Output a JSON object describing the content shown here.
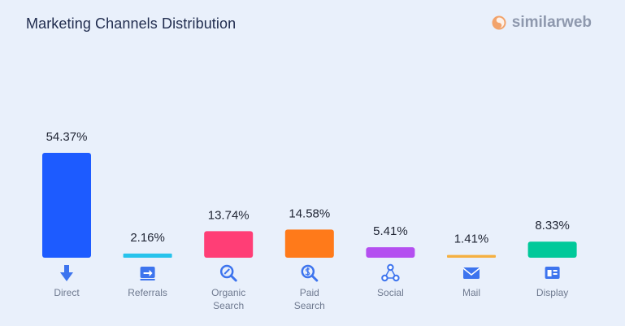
{
  "header": {
    "title": "Marketing Channels Distribution",
    "logo_text": "similarweb"
  },
  "chart_data": {
    "type": "bar",
    "title": "Marketing Channels Distribution",
    "categories": [
      [
        "Direct"
      ],
      [
        "Referrals"
      ],
      [
        "Organic",
        "Search"
      ],
      [
        "Paid",
        "Search"
      ],
      [
        "Social"
      ],
      [
        "Mail"
      ],
      [
        "Display"
      ]
    ],
    "values": [
      54.37,
      2.16,
      13.74,
      14.58,
      5.41,
      1.41,
      8.33
    ],
    "value_labels": [
      "54.37%",
      "2.16%",
      "13.74%",
      "14.58%",
      "5.41%",
      "1.41%",
      "8.33%"
    ],
    "colors": [
      "#1d5bff",
      "#27c3ec",
      "#ff3e76",
      "#ff7a1a",
      "#b44ff0",
      "#f5b041",
      "#00c99a"
    ],
    "icons": [
      "arrow-down-icon",
      "referral-arrow-icon",
      "search-magnifier-icon",
      "dollar-search-icon",
      "share-network-icon",
      "envelope-icon",
      "display-window-icon"
    ],
    "ylim": [
      0,
      54.37
    ],
    "grid": false,
    "legend": "none",
    "xlabel": "",
    "ylabel": ""
  }
}
